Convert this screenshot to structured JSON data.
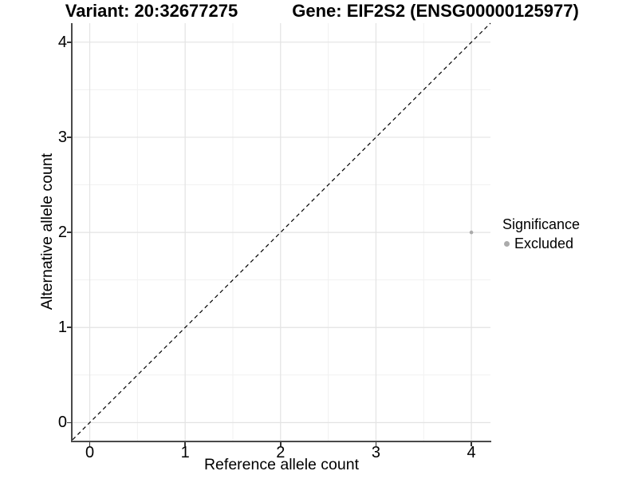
{
  "chart_data": {
    "type": "scatter",
    "title_left": "Variant: 20:32677275",
    "title_right": "Gene: EIF2S2 (ENSG00000125977)",
    "xlabel": "Reference allele count",
    "ylabel": "Alternative allele count",
    "xlim": [
      -0.18,
      4.2
    ],
    "ylim": [
      -0.19,
      4.2
    ],
    "x_ticks": [
      0,
      1,
      2,
      3,
      4
    ],
    "y_ticks": [
      0,
      1,
      2,
      3,
      4
    ],
    "minor_grid_step": 0.5,
    "grid": true,
    "identity_line": {
      "equation": "y = x",
      "style": "dashed",
      "color": "#000000"
    },
    "series": [
      {
        "name": "Excluded",
        "color": "#ababab",
        "points": [
          {
            "x": 4,
            "y": 2
          }
        ]
      }
    ],
    "legend": {
      "title": "Significance",
      "position": "right",
      "items": [
        {
          "label": "Excluded",
          "color": "#ababab"
        }
      ]
    },
    "colors": {
      "background": "#ffffff",
      "grid_major": "#e3e3e3",
      "grid_minor": "#f1f1f1",
      "axis_line": "#4a4a4a",
      "tick": "#333333",
      "text": "#000000"
    }
  }
}
